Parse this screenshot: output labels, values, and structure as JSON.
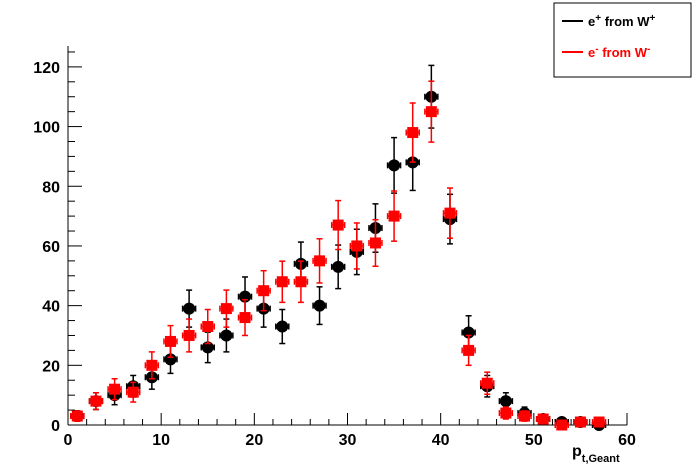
{
  "chart_data": {
    "type": "scatter",
    "xlabel": {
      "main": "p",
      "sub": "t,Geant"
    },
    "ylabel": "",
    "xlim": [
      0,
      60
    ],
    "ylim": [
      0,
      127
    ],
    "x_ticks": [
      0,
      10,
      20,
      30,
      40,
      50,
      60
    ],
    "y_ticks": [
      0,
      20,
      40,
      60,
      80,
      100,
      120
    ],
    "grid": false,
    "legend": {
      "placement": "top-right",
      "entries": [
        {
          "label": "e",
          "sup": "+",
          "middle": " from W",
          "sup2": "+",
          "color": "#000000",
          "marker": "circle"
        },
        {
          "label": "e",
          "sup": "-",
          "middle": " from W",
          "sup2": "-",
          "color": "#ff0000",
          "marker": "square"
        }
      ]
    },
    "series": [
      {
        "name": "e+ from W+",
        "color": "#000000",
        "marker": "circle",
        "x": [
          1,
          3,
          5,
          7,
          9,
          11,
          13,
          15,
          17,
          19,
          21,
          23,
          25,
          27,
          29,
          31,
          33,
          35,
          37,
          39,
          41,
          43,
          45,
          47,
          49,
          51,
          53,
          55,
          57
        ],
        "y": [
          3,
          8,
          10,
          13,
          16,
          22,
          39,
          26,
          30,
          43,
          39,
          33,
          54,
          40,
          53,
          58,
          66,
          87,
          88,
          110,
          69,
          31,
          13,
          8,
          4,
          2,
          1,
          1,
          0
        ],
        "err": [
          1.7,
          2.8,
          3.2,
          3.6,
          4,
          4.7,
          6.2,
          5.1,
          5.5,
          6.6,
          6.2,
          5.7,
          7.3,
          6.3,
          7.3,
          7.6,
          8.1,
          9.3,
          9.4,
          10.5,
          8.3,
          5.6,
          3.6,
          2.8,
          2,
          1.4,
          1,
          1,
          0
        ]
      },
      {
        "name": "e- from W-",
        "color": "#ff0000",
        "marker": "square",
        "x": [
          1,
          3,
          5,
          7,
          9,
          11,
          13,
          15,
          17,
          19,
          21,
          23,
          25,
          27,
          29,
          31,
          33,
          35,
          37,
          39,
          41,
          43,
          45,
          47,
          49,
          51,
          53,
          55,
          57
        ],
        "y": [
          3,
          8,
          12,
          11,
          20,
          28,
          30,
          33,
          39,
          36,
          45,
          48,
          48,
          55,
          67,
          60,
          61,
          70,
          98,
          105,
          71,
          25,
          14,
          4,
          3,
          2,
          0,
          1,
          1
        ],
        "err": [
          1.7,
          2.8,
          3.5,
          3.3,
          4.5,
          5.3,
          5.5,
          5.7,
          6.2,
          6,
          6.7,
          6.9,
          6.9,
          7.4,
          8.2,
          7.7,
          7.8,
          8.4,
          9.9,
          10.2,
          8.4,
          5,
          3.7,
          2,
          1.7,
          1.4,
          0,
          1,
          1
        ]
      }
    ]
  }
}
